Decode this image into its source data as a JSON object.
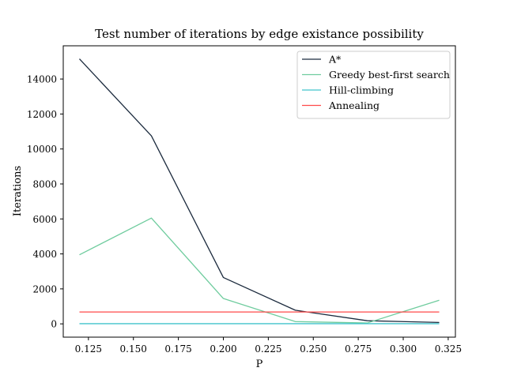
{
  "chart_data": {
    "type": "line",
    "title": "Test number of iterations by edge existance possibility",
    "xlabel": "P",
    "ylabel": "Iterations",
    "x": [
      0.12,
      0.16,
      0.2,
      0.24,
      0.28,
      0.32
    ],
    "xlim": [
      0.111,
      0.329
    ],
    "ylim": [
      -760,
      15900
    ],
    "xticks": [
      0.125,
      0.15,
      0.175,
      0.2,
      0.225,
      0.25,
      0.275,
      0.3,
      0.325
    ],
    "xtick_labels": [
      "0.125",
      "0.150",
      "0.175",
      "0.200",
      "0.225",
      "0.250",
      "0.275",
      "0.300",
      "0.325"
    ],
    "yticks": [
      0,
      2000,
      4000,
      6000,
      8000,
      10000,
      12000,
      14000
    ],
    "ytick_labels": [
      "0",
      "2000",
      "4000",
      "6000",
      "8000",
      "10000",
      "12000",
      "14000"
    ],
    "grid": false,
    "legend_position": "top-right",
    "series": [
      {
        "name": "A*",
        "color": "#1b2a3d",
        "values": [
          15150,
          10750,
          2650,
          780,
          180,
          80
        ]
      },
      {
        "name": "Greedy best-first search",
        "color": "#6fcc9e",
        "values": [
          3950,
          6050,
          1450,
          130,
          50,
          1350
        ]
      },
      {
        "name": "Hill-climbing",
        "color": "#40c4cc",
        "values": [
          10,
          10,
          10,
          10,
          10,
          10
        ]
      },
      {
        "name": "Annealing",
        "color": "#ff4a4a",
        "values": [
          680,
          680,
          680,
          680,
          680,
          680
        ]
      }
    ]
  }
}
